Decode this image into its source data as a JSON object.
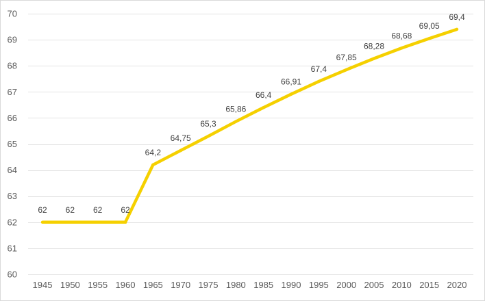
{
  "chart_data": {
    "type": "line",
    "title": "",
    "xlabel": "",
    "ylabel": "",
    "ylim": [
      60,
      70
    ],
    "y_ticks": [
      60,
      61,
      62,
      63,
      64,
      65,
      66,
      67,
      68,
      69,
      70
    ],
    "grid": true,
    "legend": "none",
    "categories": [
      "1945",
      "1950",
      "1955",
      "1960",
      "1965",
      "1970",
      "1975",
      "1980",
      "1985",
      "1990",
      "1995",
      "2000",
      "2005",
      "2010",
      "2015",
      "2020"
    ],
    "series": [
      {
        "name": "Series 1",
        "color": "#f5d000",
        "values": [
          62,
          62,
          62,
          62,
          64.2,
          64.75,
          65.3,
          65.86,
          66.4,
          66.91,
          67.4,
          67.85,
          68.28,
          68.68,
          69.05,
          69.4
        ],
        "labels": [
          "62",
          "62",
          "62",
          "62",
          "64,2",
          "64,75",
          "65,3",
          "65,86",
          "66,4",
          "66,91",
          "67,4",
          "67,85",
          "68,28",
          "68,68",
          "69,05",
          "69,4"
        ]
      }
    ]
  }
}
